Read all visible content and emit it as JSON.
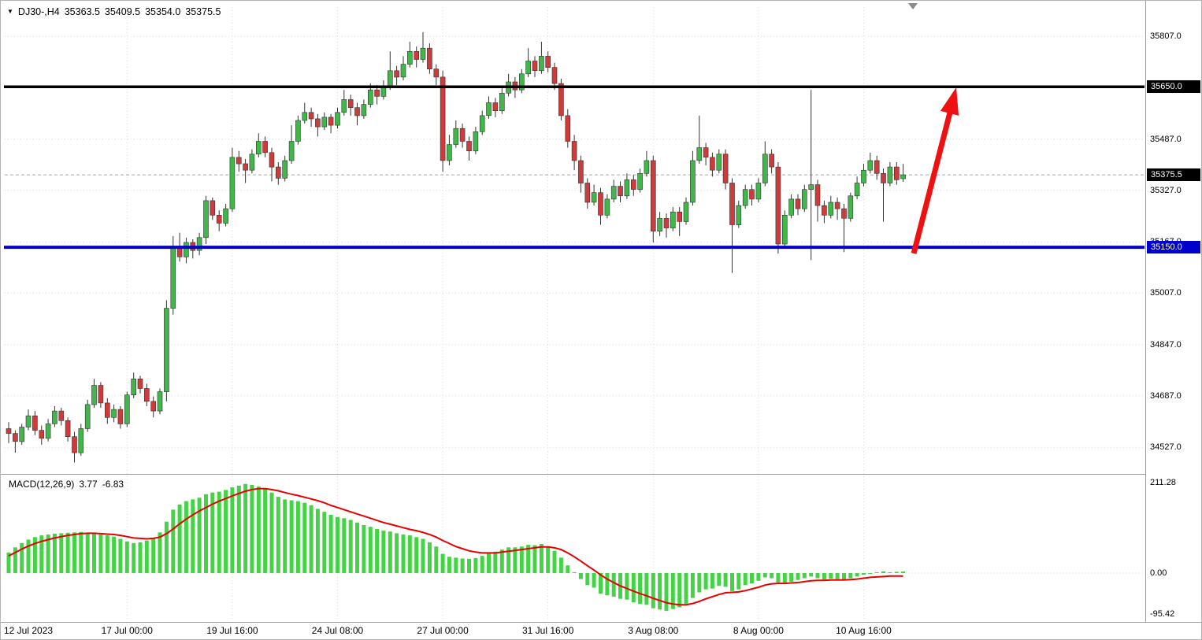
{
  "header": {
    "collapse_icon": "▼",
    "symbol_period": "DJ30-,H4",
    "open": "35363.5",
    "high": "35409.5",
    "low": "35354.0",
    "close": "35375.5"
  },
  "chart_data": {
    "type": "candlestick",
    "title": "DJ30-,H4",
    "timeframe": "H4",
    "x_tick_labels": [
      "12 Jul 2023",
      "17 Jul 00:00",
      "19 Jul 16:00",
      "24 Jul 08:00",
      "27 Jul 00:00",
      "31 Jul 16:00",
      "3 Aug 08:00",
      "8 Aug 00:00",
      "10 Aug 16:00"
    ],
    "x_tick_indices": [
      0,
      18,
      34,
      50,
      66,
      82,
      98,
      114,
      130
    ],
    "price_ticks": [
      35807.0,
      35487.0,
      35327.0,
      35167.0,
      35007.0,
      34847.0,
      34687.0,
      34527.0
    ],
    "grid_levels": [
      35807,
      35647,
      35487,
      35327,
      35167,
      35007,
      34847,
      34687,
      34527
    ],
    "ylim": [
      34449,
      35898
    ],
    "levels": {
      "resistance": {
        "value": 35650.0,
        "label": "35650.0",
        "color": "#000000"
      },
      "support": {
        "value": 35150.0,
        "label": "35150.0",
        "color": "#0000cd"
      },
      "current_price": {
        "value": 35375.5,
        "label": "35375.5",
        "color": "#000000"
      }
    },
    "annotation_arrow": {
      "direction": "up",
      "color": "#ee1111"
    },
    "colors": {
      "up": "#41b649",
      "down": "#cf3a3a",
      "outline": "#333333"
    },
    "candles": [
      [
        34585,
        34605,
        34540,
        34570
      ],
      [
        34570,
        34580,
        34510,
        34545
      ],
      [
        34545,
        34600,
        34535,
        34590
      ],
      [
        34590,
        34645,
        34580,
        34625
      ],
      [
        34625,
        34640,
        34565,
        34580
      ],
      [
        34580,
        34595,
        34535,
        34555
      ],
      [
        34555,
        34615,
        34545,
        34600
      ],
      [
        34600,
        34655,
        34590,
        34640
      ],
      [
        34640,
        34650,
        34595,
        34610
      ],
      [
        34610,
        34620,
        34545,
        34560
      ],
      [
        34560,
        34575,
        34480,
        34510
      ],
      [
        34510,
        34600,
        34500,
        34585
      ],
      [
        34585,
        34675,
        34575,
        34660
      ],
      [
        34660,
        34740,
        34650,
        34720
      ],
      [
        34720,
        34730,
        34650,
        34665
      ],
      [
        34665,
        34680,
        34600,
        34620
      ],
      [
        34620,
        34660,
        34605,
        34645
      ],
      [
        34645,
        34655,
        34585,
        34600
      ],
      [
        34600,
        34700,
        34590,
        34690
      ],
      [
        34690,
        34760,
        34680,
        34740
      ],
      [
        34740,
        34750,
        34695,
        34710
      ],
      [
        34710,
        34725,
        34655,
        34670
      ],
      [
        34670,
        34685,
        34620,
        34640
      ],
      [
        34640,
        34710,
        34630,
        34700
      ],
      [
        34700,
        34985,
        34670,
        34960
      ],
      [
        34960,
        35185,
        34940,
        35150
      ],
      [
        35150,
        35195,
        35105,
        35120
      ],
      [
        35120,
        35180,
        35100,
        35165
      ],
      [
        35165,
        35175,
        35115,
        35140
      ],
      [
        35140,
        35195,
        35125,
        35180
      ],
      [
        35180,
        35310,
        35160,
        35295
      ],
      [
        35295,
        35305,
        35235,
        35250
      ],
      [
        35250,
        35265,
        35200,
        35225
      ],
      [
        35225,
        35285,
        35215,
        35270
      ],
      [
        35270,
        35460,
        35260,
        35430
      ],
      [
        35430,
        35450,
        35385,
        35410
      ],
      [
        35410,
        35425,
        35350,
        35390
      ],
      [
        35390,
        35455,
        35380,
        35440
      ],
      [
        35440,
        35505,
        35430,
        35480
      ],
      [
        35480,
        35495,
        35430,
        35445
      ],
      [
        35445,
        35460,
        35355,
        35400
      ],
      [
        35400,
        35415,
        35345,
        35365
      ],
      [
        35365,
        35435,
        35355,
        35420
      ],
      [
        35420,
        35530,
        35410,
        35480
      ],
      [
        35480,
        35560,
        35470,
        35545
      ],
      [
        35545,
        35600,
        35535,
        35570
      ],
      [
        35570,
        35585,
        35525,
        35550
      ],
      [
        35550,
        35565,
        35495,
        35525
      ],
      [
        35525,
        35570,
        35515,
        35555
      ],
      [
        35555,
        35565,
        35505,
        35530
      ],
      [
        35530,
        35585,
        35520,
        35570
      ],
      [
        35570,
        35640,
        35560,
        35610
      ],
      [
        35610,
        35625,
        35560,
        35585
      ],
      [
        35585,
        35600,
        35530,
        35560
      ],
      [
        35560,
        35610,
        35550,
        35595
      ],
      [
        35595,
        35660,
        35585,
        35640
      ],
      [
        35640,
        35655,
        35595,
        35620
      ],
      [
        35620,
        35670,
        35610,
        35650
      ],
      [
        35650,
        35760,
        35640,
        35700
      ],
      [
        35700,
        35715,
        35655,
        35680
      ],
      [
        35680,
        35745,
        35670,
        35720
      ],
      [
        35720,
        35790,
        35710,
        35760
      ],
      [
        35760,
        35775,
        35710,
        35735
      ],
      [
        35735,
        35820,
        35725,
        35770
      ],
      [
        35770,
        35785,
        35690,
        35705
      ],
      [
        35705,
        35720,
        35655,
        35680
      ],
      [
        35680,
        35700,
        35385,
        35420
      ],
      [
        35420,
        35500,
        35405,
        35470
      ],
      [
        35470,
        35545,
        35460,
        35520
      ],
      [
        35520,
        35535,
        35460,
        35480
      ],
      [
        35480,
        35495,
        35420,
        35450
      ],
      [
        35450,
        35525,
        35440,
        35510
      ],
      [
        35510,
        35575,
        35500,
        35560
      ],
      [
        35560,
        35620,
        35550,
        35600
      ],
      [
        35600,
        35615,
        35555,
        35575
      ],
      [
        35575,
        35645,
        35565,
        35630
      ],
      [
        35630,
        35690,
        35620,
        35665
      ],
      [
        35665,
        35680,
        35615,
        35640
      ],
      [
        35640,
        35705,
        35630,
        35690
      ],
      [
        35690,
        35770,
        35680,
        35730
      ],
      [
        35730,
        35745,
        35680,
        35700
      ],
      [
        35700,
        35790,
        35690,
        35745
      ],
      [
        35745,
        35760,
        35695,
        35710
      ],
      [
        35710,
        35725,
        35640,
        35660
      ],
      [
        35660,
        35675,
        35545,
        35560
      ],
      [
        35560,
        35580,
        35460,
        35480
      ],
      [
        35480,
        35500,
        35390,
        35420
      ],
      [
        35420,
        35435,
        35320,
        35350
      ],
      [
        35350,
        35365,
        35270,
        35290
      ],
      [
        35290,
        35345,
        35280,
        35320
      ],
      [
        35320,
        35335,
        35220,
        35250
      ],
      [
        35250,
        35315,
        35240,
        35300
      ],
      [
        35300,
        35360,
        35290,
        35340
      ],
      [
        35340,
        35355,
        35290,
        35310
      ],
      [
        35310,
        35380,
        35300,
        35360
      ],
      [
        35360,
        35375,
        35310,
        35330
      ],
      [
        35330,
        35395,
        35320,
        35380
      ],
      [
        35380,
        35450,
        35370,
        35420
      ],
      [
        35420,
        35435,
        35165,
        35200
      ],
      [
        35200,
        35260,
        35185,
        35240
      ],
      [
        35240,
        35255,
        35180,
        35210
      ],
      [
        35210,
        35275,
        35200,
        35260
      ],
      [
        35260,
        35275,
        35185,
        35230
      ],
      [
        35230,
        35305,
        35220,
        35290
      ],
      [
        35290,
        35450,
        35280,
        35420
      ],
      [
        35420,
        35560,
        35410,
        35460
      ],
      [
        35460,
        35475,
        35405,
        35430
      ],
      [
        35430,
        35445,
        35370,
        35390
      ],
      [
        35390,
        35455,
        35380,
        35440
      ],
      [
        35440,
        35455,
        35330,
        35350
      ],
      [
        35350,
        35365,
        35070,
        35220
      ],
      [
        35220,
        35295,
        35210,
        35280
      ],
      [
        35280,
        35345,
        35270,
        35330
      ],
      [
        35330,
        35345,
        35280,
        35300
      ],
      [
        35300,
        35365,
        35290,
        35350
      ],
      [
        35350,
        35480,
        35340,
        35440
      ],
      [
        35440,
        35455,
        35380,
        35400
      ],
      [
        35400,
        35415,
        35130,
        35160
      ],
      [
        35160,
        35265,
        35150,
        35250
      ],
      [
        35250,
        35315,
        35240,
        35300
      ],
      [
        35300,
        35315,
        35250,
        35270
      ],
      [
        35270,
        35345,
        35260,
        35330
      ],
      [
        35330,
        35640,
        35110,
        35345
      ],
      [
        35345,
        35360,
        35230,
        35280
      ],
      [
        35280,
        35295,
        35225,
        35250
      ],
      [
        35250,
        35310,
        35240,
        35290
      ],
      [
        35290,
        35305,
        35235,
        35270
      ],
      [
        35270,
        35285,
        35135,
        35240
      ],
      [
        35240,
        35320,
        35230,
        35310
      ],
      [
        35310,
        35370,
        35300,
        35350
      ],
      [
        35350,
        35410,
        35340,
        35390
      ],
      [
        35390,
        35445,
        35380,
        35420
      ],
      [
        35420,
        35435,
        35360,
        35380
      ],
      [
        35380,
        35395,
        35230,
        35350
      ],
      [
        35350,
        35415,
        35340,
        35400
      ],
      [
        35400,
        35415,
        35345,
        35360
      ],
      [
        35363.5,
        35409.5,
        35354.0,
        35375.5
      ]
    ],
    "macd": {
      "label": "MACD(12,26,9)",
      "value": "3.77",
      "signal": "-6.83",
      "axis_max": "211.28",
      "axis_zero": "0.00",
      "axis_min": "-95.42",
      "ylim": [
        -95.42,
        211.28
      ],
      "colors": {
        "histogram": "#44d344",
        "signal": "#e80000"
      },
      "histogram": [
        48,
        60,
        70,
        78,
        84,
        88,
        90,
        92,
        93,
        94,
        95,
        96,
        94,
        92,
        90,
        88,
        85,
        80,
        74,
        70,
        72,
        76,
        82,
        95,
        120,
        148,
        160,
        168,
        172,
        176,
        184,
        188,
        190,
        194,
        200,
        204,
        208,
        206,
        202,
        196,
        188,
        178,
        172,
        170,
        168,
        164,
        158,
        150,
        143,
        136,
        131,
        128,
        124,
        118,
        112,
        108,
        103,
        99,
        97,
        93,
        90,
        88,
        84,
        80,
        72,
        62,
        45,
        38,
        36,
        34,
        33,
        35,
        40,
        46,
        50,
        55,
        60,
        60,
        62,
        66,
        65,
        68,
        62,
        52,
        36,
        18,
        2,
        -14,
        -28,
        -34,
        -48,
        -52,
        -55,
        -60,
        -62,
        -68,
        -72,
        -74,
        -82,
        -85,
        -88,
        -84,
        -80,
        -72,
        -58,
        -45,
        -38,
        -36,
        -30,
        -32,
        -42,
        -38,
        -28,
        -24,
        -18,
        -10,
        -12,
        -22,
        -24,
        -20,
        -16,
        -12,
        -8,
        -12,
        -15,
        -13,
        -14,
        -16,
        -12,
        -8,
        -4,
        0,
        2,
        4,
        2,
        3,
        3.77
      ],
      "signal_line": [
        40,
        48,
        56,
        63,
        69,
        74,
        78,
        82,
        85,
        88,
        90,
        92,
        93,
        93,
        92,
        91,
        90,
        88,
        85,
        82,
        81,
        80,
        81,
        84,
        92,
        103,
        115,
        126,
        136,
        145,
        153,
        161,
        168,
        174,
        180,
        186,
        191,
        195,
        197,
        197,
        195,
        192,
        188,
        184,
        181,
        177,
        173,
        169,
        164,
        158,
        153,
        148,
        143,
        138,
        133,
        128,
        123,
        118,
        114,
        110,
        106,
        102,
        99,
        95,
        90,
        84,
        76,
        69,
        62,
        57,
        52,
        49,
        47,
        47,
        47,
        49,
        51,
        53,
        55,
        57,
        59,
        61,
        61,
        59,
        55,
        47,
        38,
        28,
        17,
        7,
        -4,
        -14,
        -22,
        -30,
        -36,
        -42,
        -48,
        -53,
        -59,
        -64,
        -69,
        -72,
        -74,
        -74,
        -71,
        -66,
        -60,
        -55,
        -50,
        -46,
        -45,
        -44,
        -41,
        -37,
        -33,
        -28,
        -25,
        -24,
        -24,
        -23,
        -22,
        -20,
        -18,
        -17,
        -17,
        -16,
        -16,
        -16,
        -15,
        -14,
        -12,
        -10,
        -9,
        -8,
        -7,
        -7,
        -6.83
      ]
    }
  }
}
